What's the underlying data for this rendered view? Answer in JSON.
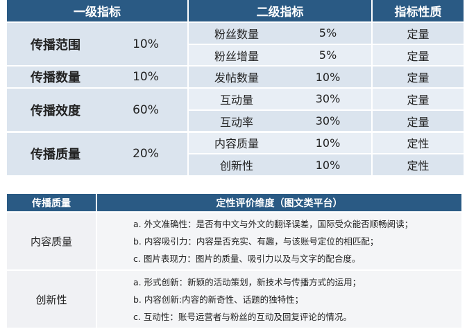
{
  "table1": {
    "header": [
      "一级指标",
      "二级指标",
      "指标性质"
    ],
    "groups": [
      {
        "name": "传播范围",
        "weight": "10%",
        "items": [
          {
            "name": "粉丝数量",
            "weight": "5%",
            "nature": "定量"
          },
          {
            "name": "粉丝增量",
            "weight": "5%",
            "nature": "定量"
          }
        ]
      },
      {
        "name": "传播数量",
        "weight": "10%",
        "items": [
          {
            "name": "发帖数量",
            "weight": "10%",
            "nature": "定量"
          }
        ]
      },
      {
        "name": "传播效度",
        "weight": "60%",
        "items": [
          {
            "name": "互动量",
            "weight": "30%",
            "nature": "定量"
          },
          {
            "name": "互动率",
            "weight": "30%",
            "nature": "定量"
          }
        ]
      },
      {
        "name": "传播质量",
        "weight": "20%",
        "items": [
          {
            "name": "内容质量",
            "weight": "10%",
            "nature": "定性"
          },
          {
            "name": "创新性",
            "weight": "10%",
            "nature": "定性"
          }
        ]
      }
    ]
  },
  "table2": {
    "header": [
      "传播质量",
      "定性评价维度（图文类平台）"
    ],
    "rows": [
      {
        "name": "内容质量",
        "lines": [
          "a.  外文准确性：是否有中文与外文的翻译误差，国际受众能否顺畅阅读；",
          "b.  内容吸引力：内容是否充实、有趣，与该账号定位的相匹配；",
          "c.  图片表现力：图片的质量、吸引力以及与文字的配合度。"
        ]
      },
      {
        "name": "创新性",
        "lines": [
          "a.  形式创新：新颖的活动策划，新技术与传播方式的运用；",
          "b.  内容创新:内容的新奇性、话题的独特性；",
          "c.  互动性：账号运营者与粉丝的互动及回复评论的情况。"
        ]
      }
    ]
  }
}
